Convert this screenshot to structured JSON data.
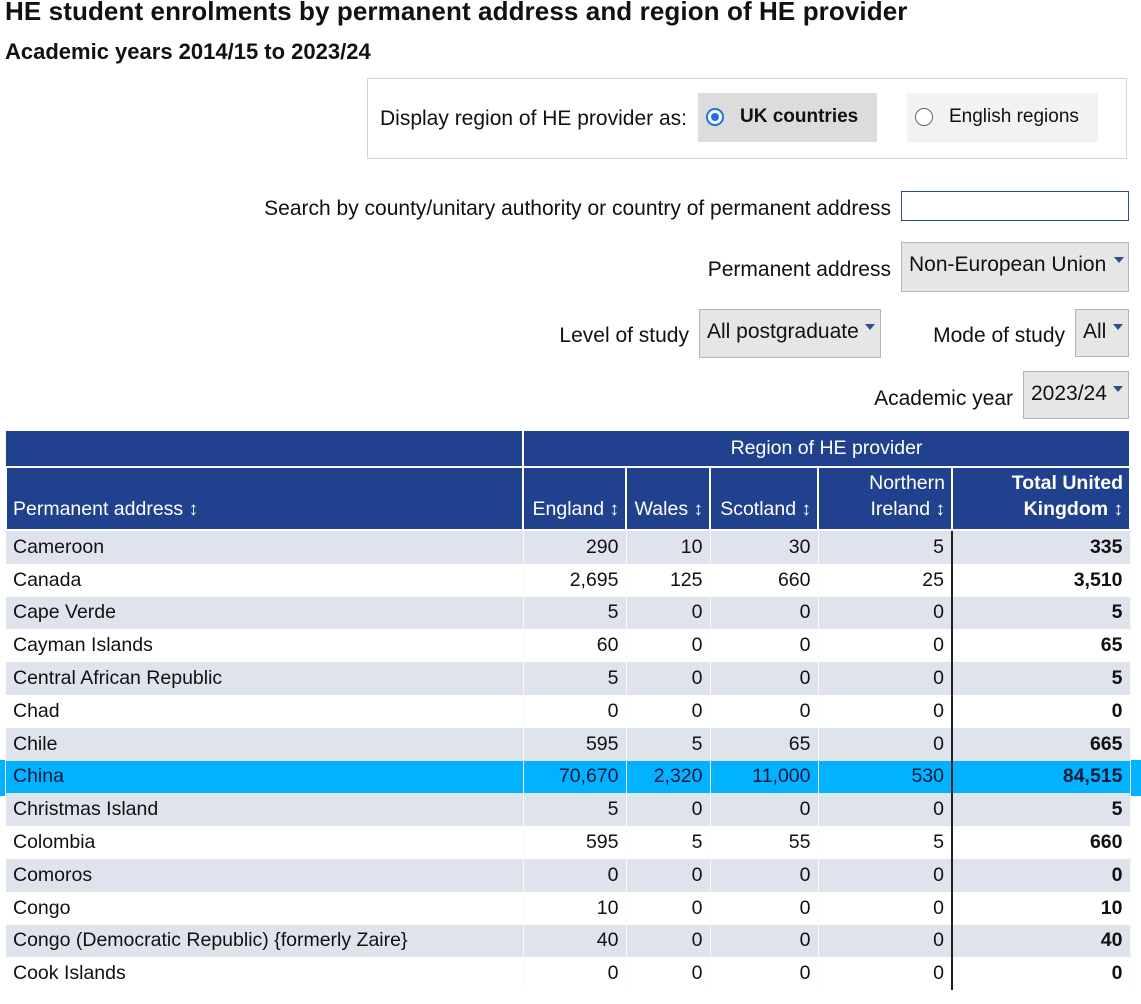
{
  "header": {
    "title": "HE student enrolments by permanent address and region of HE provider",
    "subtitle": "Academic years 2014/15 to 2023/24"
  },
  "display_region": {
    "label": "Display region of HE provider as:",
    "options": [
      {
        "label": "UK countries",
        "selected": true
      },
      {
        "label": "English regions",
        "selected": false
      }
    ]
  },
  "search": {
    "label": "Search by county/unitary authority or country of permanent address",
    "value": ""
  },
  "filters": {
    "permanent_address": {
      "label": "Permanent address",
      "value": "Non-European Union"
    },
    "level_of_study": {
      "label": "Level of study",
      "value": "All postgraduate"
    },
    "mode_of_study": {
      "label": "Mode of study",
      "value": "All"
    },
    "academic_year": {
      "label": "Academic year",
      "value": "2023/24"
    }
  },
  "table": {
    "group_header": "Region of HE provider",
    "sort_glyph": "↕",
    "columns": {
      "address": "Permanent address",
      "england": "England",
      "wales": "Wales",
      "scotland": "Scotland",
      "ni_line1": "Northern",
      "ni_line2": "Ireland",
      "total_line1": "Total United",
      "total_line2": "Kingdom"
    },
    "rows": [
      {
        "name": "Cameroon",
        "england": "290",
        "wales": "10",
        "scotland": "30",
        "ni": "5",
        "total": "335"
      },
      {
        "name": "Canada",
        "england": "2,695",
        "wales": "125",
        "scotland": "660",
        "ni": "25",
        "total": "3,510"
      },
      {
        "name": "Cape Verde",
        "england": "5",
        "wales": "0",
        "scotland": "0",
        "ni": "0",
        "total": "5"
      },
      {
        "name": "Cayman Islands",
        "england": "60",
        "wales": "0",
        "scotland": "0",
        "ni": "0",
        "total": "65"
      },
      {
        "name": "Central African Republic",
        "england": "5",
        "wales": "0",
        "scotland": "0",
        "ni": "0",
        "total": "5"
      },
      {
        "name": "Chad",
        "england": "0",
        "wales": "0",
        "scotland": "0",
        "ni": "0",
        "total": "0"
      },
      {
        "name": "Chile",
        "england": "595",
        "wales": "5",
        "scotland": "65",
        "ni": "0",
        "total": "665"
      },
      {
        "name": "China",
        "england": "70,670",
        "wales": "2,320",
        "scotland": "11,000",
        "ni": "530",
        "total": "84,515"
      },
      {
        "name": "Christmas Island",
        "england": "5",
        "wales": "0",
        "scotland": "0",
        "ni": "0",
        "total": "5"
      },
      {
        "name": "Colombia",
        "england": "595",
        "wales": "5",
        "scotland": "55",
        "ni": "5",
        "total": "660"
      },
      {
        "name": "Comoros",
        "england": "0",
        "wales": "0",
        "scotland": "0",
        "ni": "0",
        "total": "0"
      },
      {
        "name": "Congo",
        "england": "10",
        "wales": "0",
        "scotland": "0",
        "ni": "0",
        "total": "10"
      },
      {
        "name": "Congo (Democratic Republic) {formerly Zaire}",
        "england": "40",
        "wales": "0",
        "scotland": "0",
        "ni": "0",
        "total": "40"
      },
      {
        "name": "Cook Islands",
        "england": "0",
        "wales": "0",
        "scotland": "0",
        "ni": "0",
        "total": "0"
      }
    ],
    "highlighted_row": "China",
    "colors": {
      "header": "#20418e",
      "stripe": "#dfe3ec",
      "highlight": "#00b2ff"
    }
  }
}
